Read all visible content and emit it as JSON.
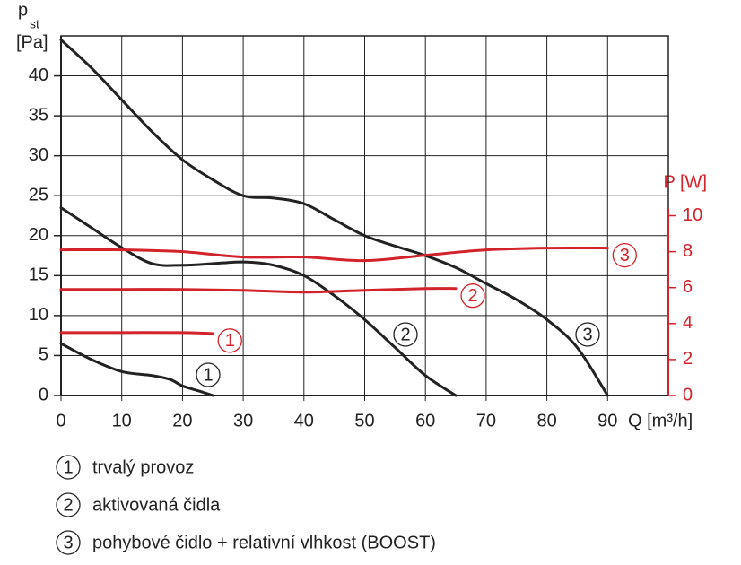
{
  "chart_data": {
    "type": "line",
    "y_label": "p",
    "y_label_sub": "st",
    "y_unit": "[Pa]",
    "y2_label": "P [W]",
    "x_label": "Q [m³/h]",
    "xlim": [
      0,
      100
    ],
    "xticks": [
      0,
      10,
      20,
      30,
      40,
      50,
      60,
      70,
      80,
      90
    ],
    "ylim": [
      0,
      45
    ],
    "yticks": [
      0,
      5,
      10,
      15,
      20,
      25,
      30,
      35,
      40
    ],
    "y2lim": [
      0,
      20
    ],
    "y2ticks": [
      0,
      2,
      4,
      6,
      8,
      10
    ],
    "grid": true,
    "series": [
      {
        "name": "trvalý provoz",
        "label": "1",
        "color": "#222222",
        "x": [
          0,
          5,
          10,
          15,
          18,
          20,
          23,
          25
        ],
        "values": [
          6.5,
          4.5,
          3,
          2.5,
          2,
          1.2,
          0.5,
          0
        ]
      },
      {
        "name": "aktivovaná čidla",
        "label": "2",
        "color": "#222222",
        "x": [
          0,
          5,
          10,
          15,
          20,
          25,
          30,
          35,
          40,
          45,
          50,
          55,
          60,
          65
        ],
        "values": [
          23.5,
          21,
          18.5,
          16.5,
          16.3,
          16.5,
          16.7,
          16.3,
          15,
          12.5,
          9.5,
          6,
          2.5,
          0
        ]
      },
      {
        "name": "pohybové čidlo + relativní vlhkost (BOOST)",
        "label": "3",
        "color": "#222222",
        "x": [
          0,
          5,
          10,
          15,
          20,
          25,
          30,
          35,
          40,
          45,
          50,
          55,
          60,
          65,
          70,
          75,
          80,
          85,
          90
        ],
        "values": [
          44.5,
          41,
          37,
          33,
          29.5,
          27,
          25,
          24.7,
          24,
          22,
          20,
          18.7,
          17.5,
          16,
          14,
          12,
          9.5,
          6,
          0
        ]
      },
      {
        "label": "1",
        "color": "#d2232a",
        "axis": "y2",
        "x": [
          0,
          10,
          20,
          25
        ],
        "values": [
          3.5,
          3.5,
          3.5,
          3.45
        ]
      },
      {
        "label": "2",
        "color": "#d2232a",
        "axis": "y2",
        "x": [
          0,
          10,
          20,
          30,
          40,
          50,
          60,
          65
        ],
        "values": [
          5.9,
          5.9,
          5.9,
          5.85,
          5.75,
          5.85,
          5.95,
          5.95
        ]
      },
      {
        "label": "3",
        "color": "#d2232a",
        "axis": "y2",
        "x": [
          0,
          10,
          20,
          30,
          40,
          50,
          60,
          70,
          80,
          90
        ],
        "values": [
          8.1,
          8.1,
          8.0,
          7.7,
          7.7,
          7.5,
          7.8,
          8.1,
          8.2,
          8.2
        ]
      }
    ]
  }
}
